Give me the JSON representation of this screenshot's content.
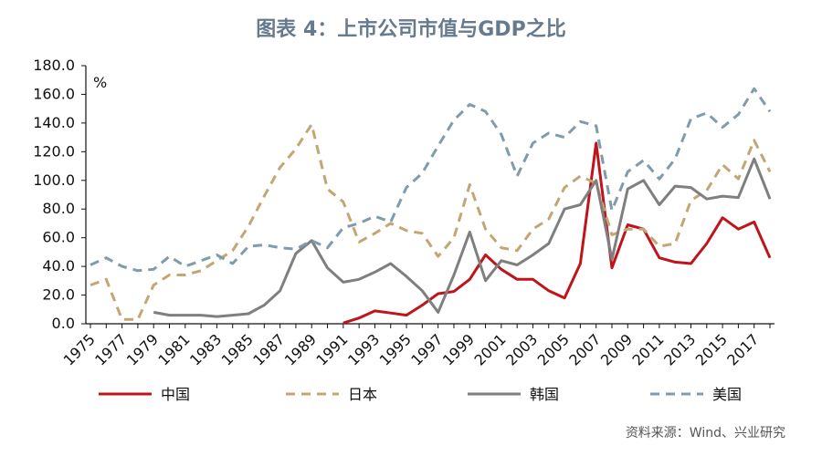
{
  "chart_data": {
    "type": "line",
    "title": "图表 4：上市公司市值与GDP之比",
    "ylabel": "%",
    "xlabel": "",
    "ylim": [
      0,
      180
    ],
    "yticks": [
      "0.0",
      "20.0",
      "40.0",
      "60.0",
      "80.0",
      "100.0",
      "120.0",
      "140.0",
      "160.0",
      "180.0"
    ],
    "x_tick_labels": [
      "1975",
      "1977",
      "1979",
      "1981",
      "1983",
      "1985",
      "1987",
      "1989",
      "1991",
      "1993",
      "1995",
      "1997",
      "1999",
      "2001",
      "2003",
      "2005",
      "2007",
      "2009",
      "2011",
      "2013",
      "2015",
      "2017"
    ],
    "x": [
      1975,
      1976,
      1977,
      1978,
      1979,
      1980,
      1981,
      1982,
      1983,
      1984,
      1985,
      1986,
      1987,
      1988,
      1989,
      1990,
      1991,
      1992,
      1993,
      1994,
      1995,
      1996,
      1997,
      1998,
      1999,
      2000,
      2001,
      2002,
      2003,
      2004,
      2005,
      2006,
      2007,
      2008,
      2009,
      2010,
      2011,
      2012,
      2013,
      2014,
      2015,
      2016,
      2017,
      2018
    ],
    "grid": false,
    "legend_position": "bottom",
    "series": [
      {
        "name": "中国",
        "color": "#c0141c",
        "dash": "solid",
        "values": [
          null,
          null,
          null,
          null,
          null,
          null,
          null,
          null,
          null,
          null,
          null,
          null,
          null,
          null,
          null,
          null,
          0.5,
          4,
          9,
          7.5,
          6,
          13,
          21,
          22.5,
          31,
          48,
          38,
          31,
          31,
          23,
          18,
          42,
          126,
          39,
          69,
          66,
          46,
          43,
          42,
          56,
          74,
          66,
          71,
          46
        ]
      },
      {
        "name": "日本",
        "color": "#c4a574",
        "dash": "dashed",
        "values": [
          27,
          31,
          3,
          3,
          27,
          34,
          34,
          37,
          44,
          51,
          68,
          89,
          109,
          122,
          139,
          94,
          85,
          57,
          63,
          70,
          65,
          63,
          47,
          60,
          97,
          66,
          53,
          51,
          66,
          73,
          95,
          103,
          98,
          62,
          66,
          66,
          54,
          56,
          86,
          93,
          111,
          101,
          128,
          106
        ]
      },
      {
        "name": "韩国",
        "color": "#7f7f7f",
        "dash": "solid",
        "values": [
          null,
          null,
          null,
          null,
          8,
          6,
          6,
          6,
          5,
          6,
          7,
          13,
          23,
          49,
          58,
          39,
          29,
          31,
          36,
          42,
          33,
          23,
          8,
          34,
          64,
          30,
          44,
          41,
          48,
          56,
          80,
          83,
          100,
          45,
          94,
          100,
          83,
          96,
          95,
          87,
          89,
          88,
          115,
          87
        ]
      },
      {
        "name": "美国",
        "color": "#7f9cac",
        "dash": "dashed",
        "values": [
          41,
          46,
          40,
          37,
          38,
          47,
          40,
          44,
          48,
          42,
          54,
          55,
          53,
          52,
          58,
          53,
          67,
          70,
          75,
          71,
          95,
          105,
          124,
          142,
          153,
          148,
          132,
          103,
          126,
          133,
          130,
          141,
          138,
          79,
          106,
          114,
          101,
          115,
          143,
          147,
          137,
          146,
          164,
          148
        ]
      }
    ]
  },
  "source": "资料来源：Wind、兴业研究"
}
